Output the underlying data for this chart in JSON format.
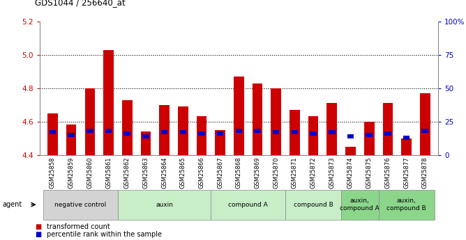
{
  "title": "GDS1044 / 256640_at",
  "samples": [
    "GSM25858",
    "GSM25859",
    "GSM25860",
    "GSM25861",
    "GSM25862",
    "GSM25863",
    "GSM25864",
    "GSM25865",
    "GSM25866",
    "GSM25867",
    "GSM25868",
    "GSM25869",
    "GSM25870",
    "GSM25871",
    "GSM25872",
    "GSM25873",
    "GSM25874",
    "GSM25875",
    "GSM25876",
    "GSM25877",
    "GSM25878"
  ],
  "red_values": [
    4.65,
    4.58,
    4.8,
    5.03,
    4.73,
    4.54,
    4.7,
    4.69,
    4.63,
    4.55,
    4.87,
    4.83,
    4.8,
    4.67,
    4.63,
    4.71,
    4.45,
    4.6,
    4.71,
    4.5,
    4.77
  ],
  "blue_values": [
    17,
    15,
    18,
    18,
    16,
    14,
    17,
    17,
    16,
    16,
    18,
    18,
    17,
    17,
    16,
    17,
    14,
    15,
    16,
    13,
    18
  ],
  "ylim_left": [
    4.4,
    5.2
  ],
  "ylim_right": [
    0,
    100
  ],
  "yticks_left": [
    4.4,
    4.6,
    4.8,
    5.0,
    5.2
  ],
  "yticks_right": [
    0,
    25,
    50,
    75,
    100
  ],
  "ytick_labels_right": [
    "0",
    "25",
    "50",
    "75",
    "100%"
  ],
  "groups": [
    {
      "label": "negative control",
      "indices": [
        0,
        1,
        2,
        3
      ],
      "color": "#d3d3d3"
    },
    {
      "label": "auxin",
      "indices": [
        4,
        5,
        6,
        7,
        8
      ],
      "color": "#c8eec8"
    },
    {
      "label": "compound A",
      "indices": [
        9,
        10,
        11,
        12
      ],
      "color": "#c8eec8"
    },
    {
      "label": "compound B",
      "indices": [
        13,
        14,
        15
      ],
      "color": "#c8eec8"
    },
    {
      "label": "auxin,\ncompound A",
      "indices": [
        16,
        17
      ],
      "color": "#8cd68c"
    },
    {
      "label": "auxin,\ncompound B",
      "indices": [
        18,
        19,
        20
      ],
      "color": "#8cd68c"
    }
  ],
  "bar_color_red": "#cc0000",
  "bar_color_blue": "#0000cc",
  "bar_width": 0.55,
  "legend1": "transformed count",
  "legend2": "percentile rank within the sample",
  "bg_color": "#ffffff",
  "left_tick_color": "#cc0000",
  "right_tick_color": "#0000bb",
  "dotted_line_color": "#000000",
  "grid_ticks": [
    4.6,
    4.8,
    5.0
  ]
}
